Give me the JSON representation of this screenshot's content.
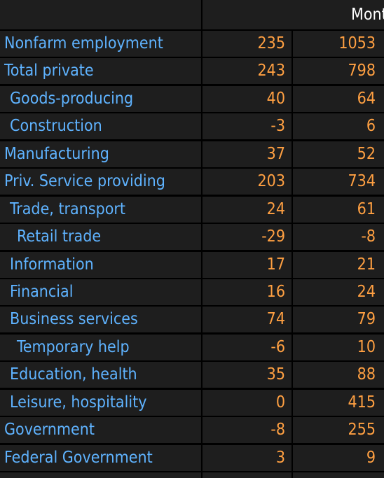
{
  "header": {
    "months_label": "Montl"
  },
  "rows": [
    {
      "label": "Nonfarm employment",
      "indent": 0,
      "v1": "235",
      "v2": "1053"
    },
    {
      "label": "Total private",
      "indent": 0,
      "v1": "243",
      "v2": "798"
    },
    {
      "label": "Goods-producing",
      "indent": 1,
      "v1": "40",
      "v2": "64"
    },
    {
      "label": "Construction",
      "indent": 1,
      "v1": "-3",
      "v2": "6"
    },
    {
      "label": "Manufacturing",
      "indent": 0,
      "v1": "37",
      "v2": "52"
    },
    {
      "label": "Priv. Service providing",
      "indent": 0,
      "v1": "203",
      "v2": "734"
    },
    {
      "label": "Trade, transport",
      "indent": 1,
      "v1": "24",
      "v2": "61"
    },
    {
      "label": "Retail trade",
      "indent": 2,
      "v1": "-29",
      "v2": "-8"
    },
    {
      "label": "Information",
      "indent": 1,
      "v1": "17",
      "v2": "21"
    },
    {
      "label": "Financial",
      "indent": 1,
      "v1": "16",
      "v2": "24"
    },
    {
      "label": "Business services",
      "indent": 1,
      "v1": "74",
      "v2": "79"
    },
    {
      "label": "Temporary help",
      "indent": 2,
      "v1": "-6",
      "v2": "10"
    },
    {
      "label": "Education, health",
      "indent": 1,
      "v1": "35",
      "v2": "88"
    },
    {
      "label": "Leisure, hospitality",
      "indent": 1,
      "v1": "0",
      "v2": "415"
    },
    {
      "label": "Government",
      "indent": 0,
      "v1": "-8",
      "v2": "255"
    },
    {
      "label": "Federal Government",
      "indent": 0,
      "v1": "3",
      "v2": "9"
    }
  ],
  "colors": {
    "background": "#000000",
    "cell": "#1e1e1e",
    "label_text": "#5fb3ff",
    "value_text": "#ffa042",
    "header_text": "#ffffff"
  }
}
